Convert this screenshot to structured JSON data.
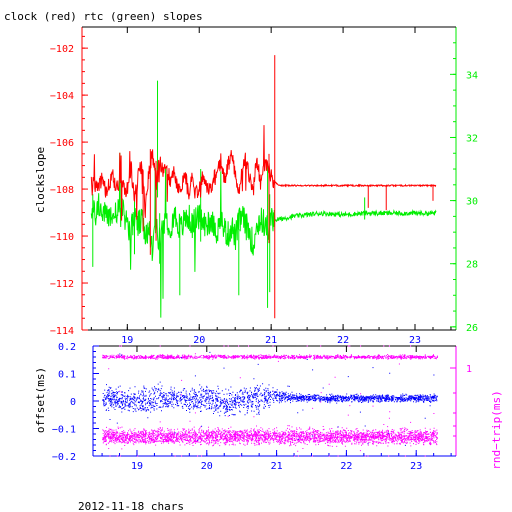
{
  "colors": {
    "clock": "#ff0000",
    "rtc": "#00ee00",
    "offset": "#0000ff",
    "roundtrip": "#ff00ff",
    "axis_left_top": "#ff0000",
    "axis_right_top": "#00ee00",
    "axis_bottom": "#0000ff",
    "axis_right_bottom": "#ff00ff",
    "frame": "#000000"
  },
  "chart_data": [
    {
      "type": "line",
      "title": "clock (red) rtc (green) slopes",
      "ylabel": "clockslope",
      "xlim": [
        18.37,
        23.57
      ],
      "ylim": [
        -114,
        -101.1
      ],
      "y2lim": [
        25.9,
        35.5
      ],
      "x_ticks": [
        19,
        20,
        21,
        22,
        23
      ],
      "x_ticklabels": [
        "19",
        "20",
        "21",
        "22",
        "23"
      ],
      "y_ticks": [
        -114,
        -112,
        -110,
        -108,
        -106,
        -104,
        -102
      ],
      "y_ticklabels": [
        "−114",
        "−112",
        "−110",
        "−108",
        "−106",
        "−104",
        "−102"
      ],
      "y2_ticks": [
        26,
        28,
        30,
        32,
        34
      ],
      "y2_ticklabels": [
        "26",
        "28",
        "30",
        "32",
        "34"
      ],
      "series": [
        {
          "name": "clock (red)",
          "axis": "left",
          "x": [
            18.5,
            18.55,
            18.6,
            18.65,
            18.7,
            18.75,
            18.8,
            18.85,
            18.9,
            18.95,
            19.0,
            19.05,
            19.1,
            19.15,
            19.2,
            19.25,
            19.3,
            19.35,
            19.4,
            19.45,
            19.5,
            19.55,
            19.6,
            19.65,
            19.7,
            19.75,
            19.8,
            19.85,
            19.9,
            19.95,
            20.0,
            20.05,
            20.1,
            20.15,
            20.2,
            20.25,
            20.3,
            20.35,
            20.4,
            20.45,
            20.5,
            20.55,
            20.6,
            20.65,
            20.7,
            20.75,
            20.8,
            20.85,
            20.9,
            20.95,
            21.0,
            21.1,
            21.5,
            22.0,
            22.5,
            23.0,
            23.3
          ],
          "y": [
            -107.7,
            -108.0,
            -107.8,
            -107.6,
            -108.1,
            -107.8,
            -107.5,
            -107.9,
            -107.6,
            -107.8,
            -108.2,
            -107.0,
            -108.5,
            -107.5,
            -106.9,
            -108.9,
            -107.2,
            -106.5,
            -107.9,
            -106.8,
            -107.4,
            -107.0,
            -107.7,
            -107.2,
            -107.9,
            -108.0,
            -107.3,
            -108.2,
            -107.6,
            -108.3,
            -107.8,
            -107.5,
            -107.9,
            -108.1,
            -107.5,
            -107.2,
            -106.8,
            -107.6,
            -107.0,
            -106.6,
            -107.3,
            -108.0,
            -107.2,
            -106.7,
            -107.5,
            -108.2,
            -106.6,
            -107.8,
            -107.0,
            -106.9,
            -107.5,
            -107.85,
            -107.85,
            -107.85,
            -107.85,
            -107.85,
            -107.85
          ]
        },
        {
          "name": "rtc (green)",
          "axis": "right",
          "x": [
            18.5,
            18.55,
            18.6,
            18.65,
            18.7,
            18.75,
            18.8,
            18.85,
            18.9,
            18.95,
            19.0,
            19.05,
            19.1,
            19.15,
            19.2,
            19.25,
            19.3,
            19.35,
            19.4,
            19.45,
            19.5,
            19.55,
            19.6,
            19.65,
            19.7,
            19.75,
            19.8,
            19.85,
            19.9,
            19.95,
            20.0,
            20.05,
            20.1,
            20.15,
            20.2,
            20.25,
            20.3,
            20.35,
            20.4,
            20.45,
            20.5,
            20.55,
            20.6,
            20.65,
            20.7,
            20.75,
            20.8,
            20.85,
            20.9,
            20.95,
            21.0,
            21.1,
            21.3,
            21.5,
            21.7,
            22.0,
            22.3,
            22.6,
            23.0,
            23.3
          ],
          "y": [
            29.8,
            29.5,
            29.9,
            29.6,
            29.5,
            29.6,
            29.4,
            29.7,
            29.5,
            29.6,
            29.3,
            29.0,
            29.5,
            29.2,
            29.4,
            28.8,
            29.0,
            28.5,
            29.3,
            28.7,
            29.1,
            29.4,
            29.2,
            29.6,
            29.3,
            29.1,
            29.4,
            29.5,
            29.2,
            29.4,
            29.5,
            29.3,
            29.2,
            29.4,
            29.3,
            29.0,
            29.4,
            29.1,
            28.9,
            29.2,
            28.8,
            29.3,
            29.5,
            29.2,
            29.0,
            28.6,
            29.2,
            29.4,
            29.3,
            29.1,
            29.4,
            29.4,
            29.5,
            29.55,
            29.6,
            29.55,
            29.6,
            29.6,
            29.6,
            29.6
          ]
        }
      ]
    },
    {
      "type": "scatter",
      "title": "",
      "ylabel": "offset(ms)",
      "y2label": "rnd−trip(ms)",
      "xlim": [
        18.37,
        23.57
      ],
      "ylim": [
        -0.2,
        0.2
      ],
      "x_ticks": [
        19,
        20,
        21,
        22,
        23
      ],
      "x_ticklabels": [
        "19",
        "20",
        "21",
        "22",
        "23"
      ],
      "y_ticks": [
        -0.2,
        -0.1,
        0,
        0.1,
        0.2
      ],
      "y_ticklabels": [
        "−0.2",
        "−0.1",
        "0",
        "0.1",
        "0.2"
      ],
      "y2_ticks": [
        1
      ],
      "y2_ticklabels": [
        "1"
      ],
      "series": [
        {
          "name": "offset",
          "axis": "left",
          "x": [
            18.5,
            18.75,
            19.0,
            19.25,
            19.5,
            19.75,
            20.0,
            20.25,
            20.5,
            20.75,
            21.0,
            21.25,
            21.5,
            22.0,
            22.5,
            23.0,
            23.3
          ],
          "y": [
            0.01,
            0.005,
            0.0,
            0.005,
            0.01,
            0.0,
            0.015,
            -0.01,
            0.005,
            0.01,
            0.02,
            0.01,
            0.01,
            0.01,
            0.01,
            0.01,
            0.01
          ],
          "spread": [
            0.03,
            0.03,
            0.035,
            0.04,
            0.03,
            0.03,
            0.035,
            0.03,
            0.035,
            0.04,
            0.02,
            0.01,
            0.01,
            0.01,
            0.01,
            0.01,
            0.01
          ]
        },
        {
          "name": "rnd-trip upper band",
          "axis": "right",
          "x": [
            18.5,
            23.3
          ],
          "y": [
            0.16,
            0.16
          ],
          "spread": [
            0.005,
            0.005
          ]
        },
        {
          "name": "rnd-trip lower band",
          "axis": "right",
          "x": [
            18.5,
            23.3
          ],
          "y": [
            -0.13,
            -0.13
          ],
          "spread": [
            0.02,
            0.02
          ]
        }
      ]
    }
  ],
  "footer": "2012-11-18 chars"
}
